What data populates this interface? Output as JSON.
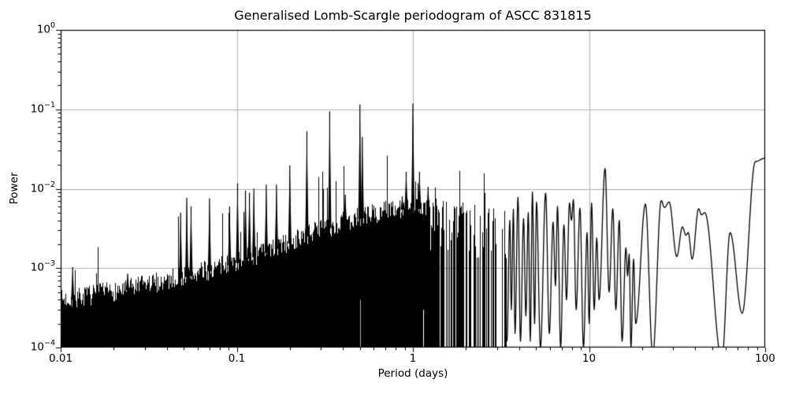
{
  "chart_data": {
    "type": "line",
    "title": "Generalised Lomb-Scargle periodogram of ASCC 831815",
    "xlabel": "Period (days)",
    "ylabel": "Power",
    "xscale": "log",
    "yscale": "log",
    "xlim": [
      0.01,
      100
    ],
    "ylim": [
      0.0001,
      1
    ],
    "grid": true,
    "legend": null,
    "line_color": "#000000",
    "grid_color": "#b0b0b0",
    "background": "#ffffff",
    "x_ticks": [
      {
        "p": 0.01,
        "label": "0.01"
      },
      {
        "p": 0.1,
        "label": "0.1"
      },
      {
        "p": 1,
        "label": "1"
      },
      {
        "p": 10,
        "label": "10"
      },
      {
        "p": 100,
        "label": "100"
      }
    ],
    "y_ticks": [
      {
        "pow": 1,
        "base": "10",
        "exp": "0"
      },
      {
        "pow": 0.1,
        "base": "10",
        "exp": "−1"
      },
      {
        "pow": 0.01,
        "base": "10",
        "exp": "−2"
      },
      {
        "pow": 0.001,
        "base": "10",
        "exp": "−3"
      },
      {
        "pow": 0.0001,
        "base": "10",
        "exp": "−4"
      }
    ],
    "main_peaks": [
      {
        "period": 0.0117,
        "power": 0.00103
      },
      {
        "period": 0.024,
        "power": 0.00085
      },
      {
        "period": 0.048,
        "power": 0.005
      },
      {
        "period": 0.052,
        "power": 0.0077
      },
      {
        "period": 0.055,
        "power": 0.006
      },
      {
        "period": 0.07,
        "power": 0.0076
      },
      {
        "period": 0.091,
        "power": 0.006
      },
      {
        "period": 0.101,
        "power": 0.0117
      },
      {
        "period": 0.112,
        "power": 0.0095
      },
      {
        "period": 0.118,
        "power": 0.0089
      },
      {
        "period": 0.125,
        "power": 0.01
      },
      {
        "period": 0.147,
        "power": 0.0113
      },
      {
        "period": 0.168,
        "power": 0.0113
      },
      {
        "period": 0.2,
        "power": 0.0196
      },
      {
        "period": 0.25,
        "power": 0.053
      },
      {
        "period": 0.337,
        "power": 0.094
      },
      {
        "period": 0.413,
        "power": 0.0084
      },
      {
        "period": 0.5,
        "power": 0.115
      },
      {
        "period": 0.516,
        "power": 0.045
      },
      {
        "period": 0.87,
        "power": 0.008
      },
      {
        "period": 0.916,
        "power": 0.0163
      },
      {
        "period": 1.0,
        "power": 0.119
      },
      {
        "period": 1.09,
        "power": 0.0163
      },
      {
        "period": 1.22,
        "power": 0.0106
      },
      {
        "period": 12.33,
        "power": 0.018
      },
      {
        "period": 100.0,
        "power": 0.0243
      }
    ],
    "noise_envelope_log": [
      [
        -2.0,
        -3.4
      ],
      [
        -1.8,
        -3.33
      ],
      [
        -1.6,
        -3.25
      ],
      [
        -1.4,
        -3.15
      ],
      [
        -1.2,
        -3.05
      ],
      [
        -1.0,
        -2.92
      ],
      [
        -0.8,
        -2.76
      ],
      [
        -0.6,
        -2.58
      ],
      [
        -0.4,
        -2.42
      ],
      [
        -0.2,
        -2.3
      ],
      [
        0.0,
        -2.22
      ],
      [
        0.2,
        -2.3
      ],
      [
        0.35,
        -2.32
      ],
      [
        0.535,
        -2.35
      ]
    ],
    "dense_region": {
      "start_period": 0.01,
      "end_period": 3.38,
      "floor_power": 0.0001,
      "slit_start_period": 0.28,
      "gap_start_period": 1.25
    },
    "smooth_curve": [
      [
        3.42,
        0.00012
      ],
      [
        3.55,
        0.004
      ],
      [
        3.62,
        0.0003
      ],
      [
        3.72,
        0.0055
      ],
      [
        3.8,
        0.00015
      ],
      [
        3.95,
        0.0078
      ],
      [
        4.08,
        0.00012
      ],
      [
        4.25,
        0.0042
      ],
      [
        4.38,
        0.00025
      ],
      [
        4.52,
        0.005
      ],
      [
        4.64,
        0.00012
      ],
      [
        4.77,
        0.0091
      ],
      [
        4.91,
        0.0002
      ],
      [
        5.03,
        0.0068
      ],
      [
        5.3,
        0.0001
      ],
      [
        5.67,
        0.0088
      ],
      [
        5.95,
        0.00015
      ],
      [
        6.25,
        0.0038
      ],
      [
        6.45,
        0.0006
      ],
      [
        6.62,
        0.006
      ],
      [
        6.9,
        0.0001
      ],
      [
        7.2,
        0.0035
      ],
      [
        7.45,
        0.0004
      ],
      [
        7.74,
        0.0066
      ],
      [
        7.95,
        0.004
      ],
      [
        8.15,
        0.0073
      ],
      [
        8.45,
        0.0003
      ],
      [
        8.88,
        0.0057
      ],
      [
        9.3,
        0.0001
      ],
      [
        9.75,
        0.0028
      ],
      [
        10.02,
        0.0002
      ],
      [
        10.34,
        0.0066
      ],
      [
        10.7,
        0.0003
      ],
      [
        11.06,
        0.0024
      ],
      [
        11.4,
        0.0004
      ],
      [
        12.33,
        0.018
      ],
      [
        13.0,
        0.0005
      ],
      [
        13.65,
        0.0056
      ],
      [
        14.2,
        0.0003
      ],
      [
        14.85,
        0.004
      ],
      [
        15.4,
        0.00012
      ],
      [
        16.2,
        0.0018
      ],
      [
        16.55,
        0.0008
      ],
      [
        16.9,
        0.0015
      ],
      [
        17.3,
        0.0001
      ],
      [
        17.9,
        0.0013
      ],
      [
        18.4,
        0.0002
      ],
      [
        20.9,
        0.0064
      ],
      [
        23.0,
        8e-05
      ],
      [
        25.7,
        0.0071
      ],
      [
        26.8,
        0.0058
      ],
      [
        28.5,
        0.0068
      ],
      [
        31.5,
        0.0014
      ],
      [
        33.9,
        0.0033
      ],
      [
        35.5,
        0.0026
      ],
      [
        36.6,
        0.0028
      ],
      [
        38.5,
        0.0013
      ],
      [
        41.9,
        0.0056
      ],
      [
        43.5,
        0.0047
      ],
      [
        45.4,
        0.005
      ],
      [
        56.8,
        7e-05
      ],
      [
        63.2,
        0.0028
      ],
      [
        74.0,
        0.00027
      ],
      [
        88.0,
        0.022
      ],
      [
        100.0,
        0.0243
      ]
    ]
  }
}
